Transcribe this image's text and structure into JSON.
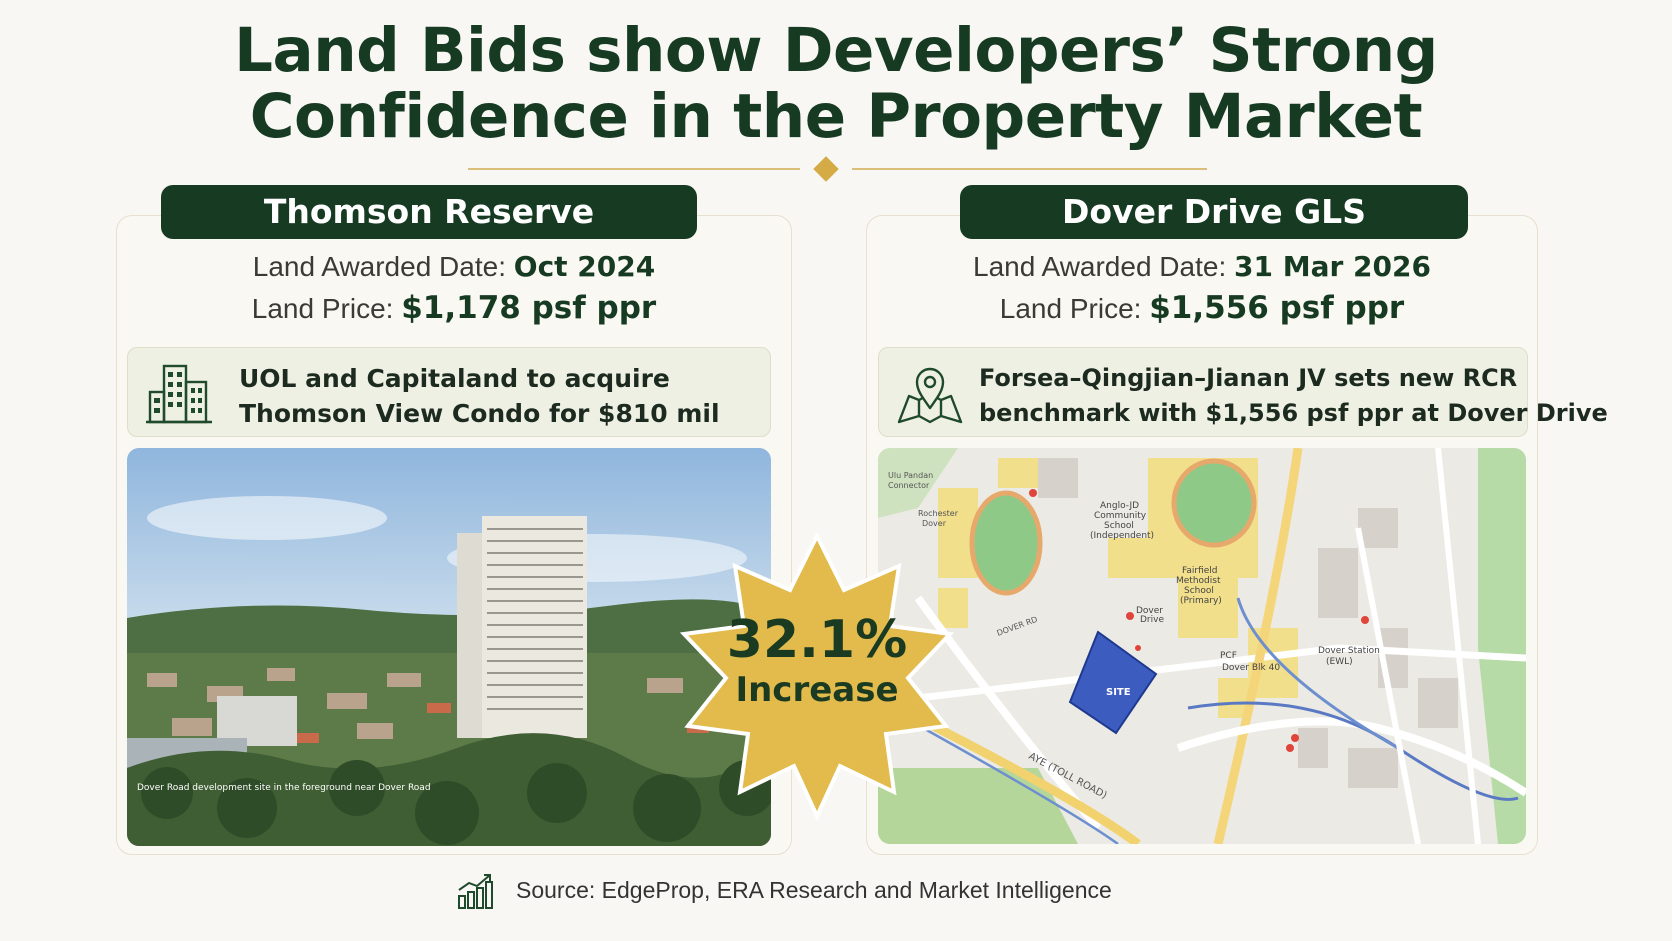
{
  "title": {
    "line1": "Land Bids show Developers’ Strong",
    "line2": "Confidence in the Property Market"
  },
  "left": {
    "name": "Thomson Reserve",
    "awarded_label": "Land Awarded Date:",
    "awarded_value": "Oct 2024",
    "price_label": "Land Price:",
    "price_value": "$1,178 psf ppr",
    "note_line1": "UOL and Capitaland to acquire",
    "note_line2": "Thomson View Condo for $810 mil",
    "note_icon": "building-icon",
    "photo_caption": "Dover Road development site in the foreground near Dover Road"
  },
  "right": {
    "name": "Dover Drive GLS",
    "awarded_label": "Land Awarded Date:",
    "awarded_value": "31 Mar 2026",
    "price_label": "Land Price:",
    "price_value": "$1,556 psf ppr",
    "note_line1": "Forsea–Qingjian–Jianan JV sets new RCR",
    "note_line2": "benchmark with $1,556 psf ppr at Dover Drive",
    "note_icon": "map-pin-icon",
    "map": {
      "school_acs": "Anglo-JD\nCommunity\nSchool\n(Independent)",
      "school_fairfield": "Fairfield\nMethodist\nSchool\n(Primary)",
      "dover_road": "DOVER RD",
      "dover_drive": "Dover\nDrive",
      "pcf": "PCF\nDover Blk 40",
      "station": "Dover Station\n(EWL)",
      "site": "SITE",
      "expressway": "AYE (TOLL ROAD)",
      "top_left": "Ulu Pandan\nConnector",
      "left_block": "Rochester\nDover"
    }
  },
  "badge": {
    "value": "32.1%",
    "label": "Increase"
  },
  "source": "Source: EdgeProp, ERA Research and Market Intelligence",
  "colors": {
    "dark_green": "#173a22",
    "gold": "#e2bb4c",
    "site_blue": "#3c5cc0"
  }
}
